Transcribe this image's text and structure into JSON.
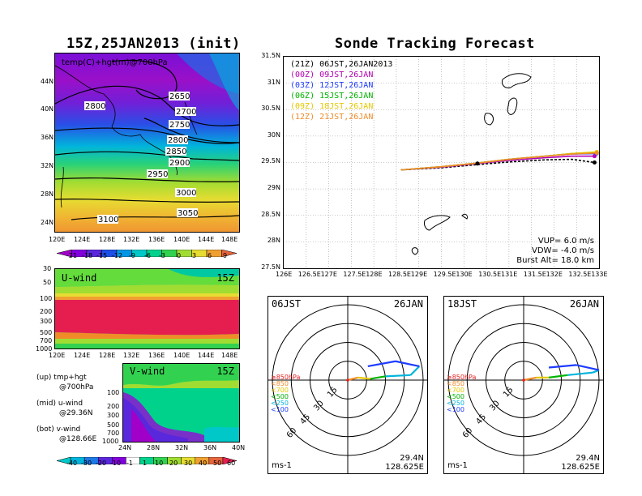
{
  "left": {
    "title": "15Z,25JAN2013 (init)",
    "map_label": "temp(C)+hgt(m)@700hPa",
    "lat_ticks": [
      "44N",
      "40N",
      "36N",
      "32N",
      "28N",
      "24N"
    ],
    "lon_ticks": [
      "120E",
      "124E",
      "128E",
      "132E",
      "136E",
      "140E",
      "144E",
      "148E"
    ],
    "contour_labels": [
      "2650",
      "2700",
      "2750",
      "2800",
      "2850",
      "2900",
      "2950",
      "3000",
      "3050",
      "3100",
      "2800"
    ],
    "temp_colorbar": [
      "-21",
      "-18",
      "-15",
      "-12",
      "-9",
      "-6",
      "-3",
      "0",
      "3",
      "6",
      "9"
    ],
    "temp_colors": [
      "#a000c8",
      "#8200dc",
      "#5a28dc",
      "#1e50e6",
      "#0096e6",
      "#00c8c8",
      "#00d28c",
      "#32d250",
      "#a0dc32",
      "#e6dc32",
      "#f0a032",
      "#e6643c"
    ],
    "u_label": "U-wind",
    "u_time": "15Z",
    "u_levels": [
      "30",
      "50",
      "100",
      "200",
      "300",
      "500",
      "700",
      "1000"
    ],
    "v_label": "V-wind",
    "v_time": "15Z",
    "v_levels": [
      "100",
      "200",
      "300",
      "500",
      "700",
      "1000"
    ],
    "v_lat_ticks": [
      "24N",
      "28N",
      "32N",
      "36N",
      "40N"
    ],
    "notes": [
      {
        "a": "(up) tmp+hgt",
        "b": "@700hPa"
      },
      {
        "a": "(mid) u-wind",
        "b": "@29.36N"
      },
      {
        "a": "(bot) v-wind",
        "b": "@128.66E"
      }
    ],
    "wind_colorbar": [
      "-40",
      "-30",
      "-20",
      "-10",
      "-1",
      "1",
      "10",
      "20",
      "30",
      "40",
      "50",
      "60"
    ]
  },
  "right": {
    "title": "Sonde Tracking Forecast",
    "legend": [
      {
        "tag": "(21Z)",
        "text": "06JST,26JAN2013",
        "color": "#000000"
      },
      {
        "tag": "(00Z)",
        "text": "09JST,26JAN",
        "color": "#b400b4"
      },
      {
        "tag": "(03Z)",
        "text": "12JST,26JAN",
        "color": "#1e3cff"
      },
      {
        "tag": "(06Z)",
        "text": "15JST,26JAN",
        "color": "#00b400"
      },
      {
        "tag": "(09Z)",
        "text": "18JST,26JAN",
        "color": "#e6c800"
      },
      {
        "tag": "(12Z)",
        "text": "21JST,26JAN",
        "color": "#f08c28"
      }
    ],
    "lat_ticks": [
      "31.5N",
      "31N",
      "30.5N",
      "30N",
      "29.5N",
      "29N",
      "28.5N",
      "28N",
      "27.5N"
    ],
    "lon_ticks": [
      "126E",
      "126.5E",
      "127E",
      "127.5E",
      "128E",
      "128.5E",
      "129E",
      "129.5E",
      "130E",
      "130.5E",
      "131E",
      "131.5E",
      "132E",
      "132.5E",
      "133E"
    ],
    "params": {
      "vup": "VUP=  6.0  m/s",
      "vdw": "VDW= -4.0  m/s",
      "burst": "Burst Alt=  18.0  km"
    }
  },
  "hodo_left": {
    "time": "06JST",
    "date": "26JAN",
    "rings": [
      "15",
      "30",
      "45",
      "60"
    ],
    "unit": "ms-1",
    "lat": "29.4N",
    "lon": "128.625E",
    "levels": [
      {
        "t": "≥850hPa",
        "c": "#e61e1e"
      },
      {
        "t": "<850",
        "c": "#f08c28"
      },
      {
        "t": "<700",
        "c": "#e6c800"
      },
      {
        "t": "<500",
        "c": "#00b400"
      },
      {
        "t": "<250",
        "c": "#00b4dc"
      },
      {
        "t": "<100",
        "c": "#1e3cff"
      }
    ]
  },
  "hodo_right": {
    "time": "18JST",
    "date": "26JAN",
    "rings": [
      "15",
      "30",
      "45",
      "60"
    ],
    "unit": "ms-1",
    "lat": "29.4N",
    "lon": "128.625E",
    "levels": [
      {
        "t": "≥850hPa",
        "c": "#e61e1e"
      },
      {
        "t": "<850",
        "c": "#f08c28"
      },
      {
        "t": "<700",
        "c": "#e6c800"
      },
      {
        "t": "<500",
        "c": "#00b400"
      },
      {
        "t": "<250",
        "c": "#00b4dc"
      },
      {
        "t": "<100",
        "c": "#1e3cff"
      }
    ]
  },
  "chart_data": [
    {
      "type": "heatmap",
      "title": "15Z,25JAN2013 (init)",
      "label": "temp(C)+hgt(m)@700hPa",
      "xlim": [
        "120E",
        "148E"
      ],
      "ylim": [
        "24N",
        "44N"
      ],
      "colorbar": [
        -21,
        -18,
        -15,
        -12,
        -9,
        -6,
        -3,
        0,
        3,
        6,
        9
      ],
      "contours": [
        2650,
        2700,
        2750,
        2800,
        2850,
        2900,
        2950,
        3000,
        3050,
        3100
      ]
    },
    {
      "type": "heatmap",
      "title": "U-wind",
      "time": "15Z",
      "x_ticks": [
        "120E",
        "124E",
        "128E",
        "132E",
        "136E",
        "140E",
        "144E",
        "148E"
      ],
      "y_levels_hPa": [
        30,
        50,
        100,
        200,
        300,
        500,
        700,
        1000
      ]
    },
    {
      "type": "heatmap",
      "title": "V-wind",
      "time": "15Z",
      "x_ticks": [
        "24N",
        "28N",
        "32N",
        "36N",
        "40N"
      ],
      "y_levels_hPa": [
        100,
        200,
        300,
        500,
        700,
        1000
      ],
      "colorbar": [
        -40,
        -30,
        -20,
        -10,
        -1,
        1,
        10,
        20,
        30,
        40,
        50,
        60
      ]
    },
    {
      "type": "line",
      "title": "Sonde Tracking Forecast",
      "xlim": [
        126,
        133
      ],
      "ylim": [
        27.5,
        31.5
      ],
      "series": [
        {
          "name": "06JST,26JAN2013",
          "x": [
            128.6,
            129.5,
            130.3,
            131.0,
            131.8,
            132.4,
            132.9
          ],
          "y": [
            29.36,
            29.4,
            29.46,
            29.51,
            29.55,
            29.56,
            29.5
          ]
        },
        {
          "name": "09JST,26JAN",
          "x": [
            128.6,
            129.5,
            130.3,
            131.0,
            131.8,
            132.4,
            132.9
          ],
          "y": [
            29.36,
            29.41,
            29.48,
            29.54,
            29.59,
            29.62,
            29.62
          ]
        },
        {
          "name": "12JST,26JAN",
          "x": [
            128.6,
            129.5,
            130.3,
            131.0,
            131.8,
            132.4,
            132.95
          ],
          "y": [
            29.36,
            29.42,
            29.49,
            29.56,
            29.62,
            29.66,
            29.67
          ]
        },
        {
          "name": "15JST,26JAN",
          "x": [
            128.6,
            129.5,
            130.3,
            131.0,
            131.8,
            132.4,
            132.95
          ],
          "y": [
            29.36,
            29.42,
            29.49,
            29.56,
            29.62,
            29.67,
            29.69
          ]
        },
        {
          "name": "18JST,26JAN",
          "x": [
            128.6,
            129.5,
            130.3,
            131.0,
            131.8,
            132.4,
            132.95
          ],
          "y": [
            29.36,
            29.42,
            29.49,
            29.56,
            29.62,
            29.67,
            29.7
          ]
        },
        {
          "name": "21JST,26JAN",
          "x": [
            128.6,
            129.5,
            130.3,
            131.0,
            131.8,
            132.4,
            132.95
          ],
          "y": [
            29.36,
            29.42,
            29.49,
            29.56,
            29.62,
            29.66,
            29.68
          ]
        }
      ]
    },
    {
      "type": "scatter",
      "title": "06JST 26JAN hodograph",
      "rings": [
        15,
        30,
        45,
        60
      ],
      "points": [
        {
          "u": 0,
          "v": 0,
          "c": "#e61e1e"
        },
        {
          "u": 8,
          "v": 2,
          "c": "#f08c28"
        },
        {
          "u": 18,
          "v": 1,
          "c": "#e6c800"
        },
        {
          "u": 30,
          "v": 3,
          "c": "#00b400"
        },
        {
          "u": 50,
          "v": 4,
          "c": "#00b4dc"
        },
        {
          "u": 57,
          "v": 11,
          "c": "#00b4dc"
        },
        {
          "u": 38,
          "v": 15,
          "c": "#1e3cff"
        },
        {
          "u": 16,
          "v": 11,
          "c": "#1e3cff"
        }
      ]
    },
    {
      "type": "scatter",
      "title": "18JST 26JAN hodograph",
      "rings": [
        15,
        30,
        45,
        60
      ],
      "points": [
        {
          "u": 0,
          "v": 0,
          "c": "#e61e1e"
        },
        {
          "u": 10,
          "v": 2,
          "c": "#f08c28"
        },
        {
          "u": 20,
          "v": 2,
          "c": "#e6c800"
        },
        {
          "u": 35,
          "v": 4,
          "c": "#00b400"
        },
        {
          "u": 55,
          "v": 6,
          "c": "#00b4dc"
        },
        {
          "u": 60,
          "v": 8,
          "c": "#00b4dc"
        },
        {
          "u": 42,
          "v": 12,
          "c": "#1e3cff"
        },
        {
          "u": 20,
          "v": 10,
          "c": "#1e3cff"
        }
      ]
    }
  ]
}
